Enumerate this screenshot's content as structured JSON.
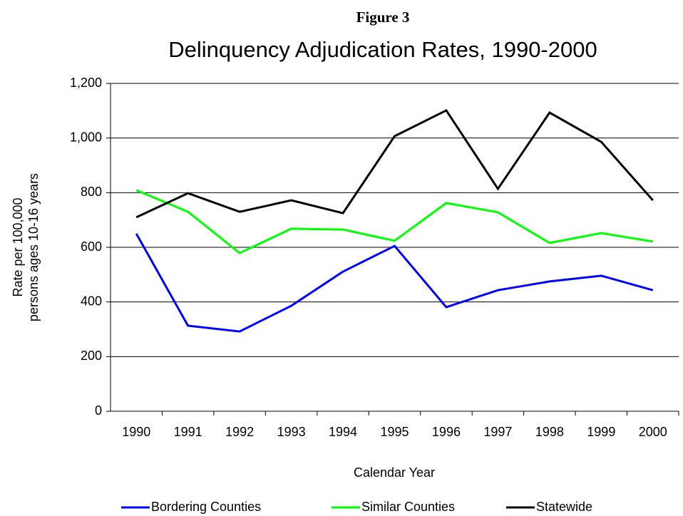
{
  "chart_data": {
    "type": "line",
    "figure_label": "Figure 3",
    "title": "Delinquency Adjudication Rates, 1990-2000",
    "y_label": [
      "Rate per 100,000",
      "persons ages 10-16 years"
    ],
    "x_label": "Calendar Year",
    "categories": [
      "1990",
      "1991",
      "1992",
      "1993",
      "1994",
      "1995",
      "1996",
      "1997",
      "1998",
      "1999",
      "2000"
    ],
    "series": [
      {
        "name": "Bordering Counties",
        "color": "#0000ff",
        "values": [
          650,
          313,
          292,
          386,
          511,
          605,
          381,
          443,
          475,
          496,
          443
        ]
      },
      {
        "name": "Similar Counties",
        "color": "#00ff00",
        "values": [
          809,
          730,
          579,
          668,
          665,
          624,
          762,
          728,
          616,
          652,
          621
        ]
      },
      {
        "name": "Statewide",
        "color": "#000000",
        "values": [
          710,
          798,
          730,
          772,
          725,
          1007,
          1101,
          814,
          1093,
          986,
          772
        ]
      }
    ],
    "ylim": [
      0,
      1200
    ],
    "yticks": [
      0,
      200,
      400,
      600,
      800,
      {
        "value": 1000,
        "label": "1,000"
      },
      {
        "value": 1200,
        "label": "1,200"
      }
    ],
    "grid": true,
    "legend": "bottom"
  }
}
